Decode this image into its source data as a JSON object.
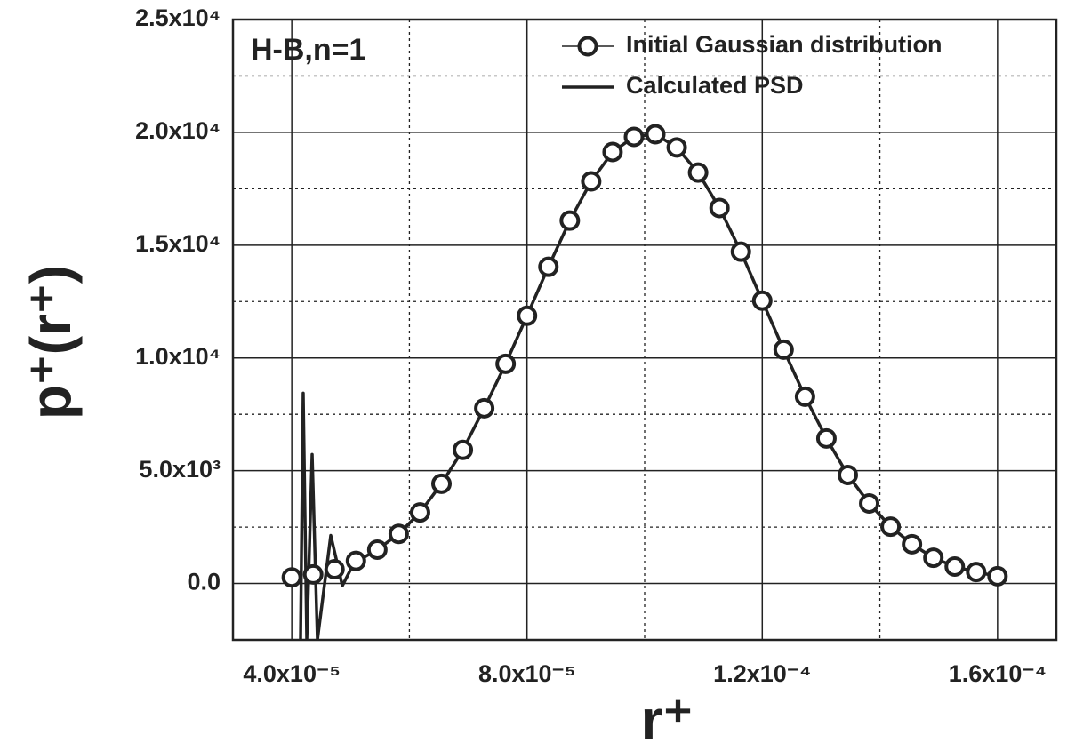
{
  "chart_data": {
    "type": "line",
    "annotation": "H-B,n=1",
    "x_label": "r⁺",
    "y_label": "p⁺(r⁺)",
    "xlim": [
      3e-05,
      0.00017
    ],
    "ylim": [
      -2500,
      25000
    ],
    "xticks": [
      {
        "value": 4e-05,
        "label": "4.0x10⁻⁵"
      },
      {
        "value": 8e-05,
        "label": "8.0x10⁻⁵"
      },
      {
        "value": 0.00012,
        "label": "1.2x10⁻⁴"
      },
      {
        "value": 0.00016,
        "label": "1.6x10⁻⁴"
      }
    ],
    "yticks": [
      {
        "value": 0,
        "label": "0.0"
      },
      {
        "value": 5000,
        "label": "5.0x10³"
      },
      {
        "value": 10000,
        "label": "1.0x10⁴"
      },
      {
        "value": 15000,
        "label": "1.5x10⁴"
      },
      {
        "value": 20000,
        "label": "2.0x10⁴"
      },
      {
        "value": 25000,
        "label": "2.5x10⁴"
      }
    ],
    "minor_xticks": [
      6e-05,
      0.0001,
      0.00014
    ],
    "minor_yticks": [
      2500,
      7500,
      12500,
      17500,
      22500
    ],
    "grid": true,
    "legend": "top-right",
    "series": [
      {
        "name": "Initial Gaussian distribution",
        "color": "#222222",
        "marker": "circle",
        "x": [
          4e-05,
          4.3636e-05,
          4.7273e-05,
          5.0909e-05,
          5.4545e-05,
          5.8182e-05,
          6.1818e-05,
          6.5455e-05,
          6.9091e-05,
          7.2727e-05,
          7.6364e-05,
          8e-05,
          8.3636e-05,
          8.7273e-05,
          9.0909e-05,
          9.4545e-05,
          9.8182e-05,
          0.000101818,
          0.000105455,
          0.000109091,
          0.000112727,
          0.000116364,
          0.00012,
          0.000123636,
          0.000127273,
          0.000130909,
          0.000134545,
          0.000138182,
          0.000141818,
          0.000145455,
          0.000149091,
          0.000152727,
          0.000156364,
          0.00016
        ],
        "values": [
          270,
          400,
          630,
          1000,
          1500,
          2200,
          3150,
          4420,
          5920,
          7770,
          9740,
          11870,
          14040,
          16090,
          17830,
          19130,
          19800,
          19920,
          19330,
          18220,
          16650,
          14710,
          12540,
          10370,
          8280,
          6430,
          4810,
          3550,
          2520,
          1740,
          1140,
          750,
          510,
          320
        ]
      },
      {
        "name": "Calculated PSD",
        "color": "#222222",
        "x": [
          4.149e-05,
          4.194e-05,
          4.255e-05,
          4.346e-05,
          4.436e-05,
          4.663e-05,
          4.86e-05,
          5.056e-05,
          5.4545e-05,
          5.8182e-05,
          6.1818e-05,
          6.5455e-05,
          6.9091e-05,
          7.2727e-05,
          7.6364e-05,
          8e-05,
          8.3636e-05,
          8.7273e-05,
          9.0909e-05,
          9.4545e-05,
          9.8182e-05,
          0.000101818,
          0.000105455,
          0.000109091,
          0.000112727,
          0.000116364,
          0.00012,
          0.000123636,
          0.000127273,
          0.000130909,
          0.000134545,
          0.000138182,
          0.000141818,
          0.000145455,
          0.000149091,
          0.000152727,
          0.000156364,
          0.00016
        ],
        "values": [
          -2500,
          8440,
          -2500,
          5720,
          -2500,
          2130,
          -100,
          900,
          1500,
          2200,
          3150,
          4420,
          5920,
          7770,
          9740,
          11870,
          14040,
          16090,
          17830,
          19130,
          19800,
          19920,
          19330,
          18220,
          16650,
          14710,
          12540,
          10370,
          8280,
          6430,
          4810,
          3550,
          2520,
          1740,
          1140,
          750,
          510,
          320
        ]
      }
    ]
  }
}
